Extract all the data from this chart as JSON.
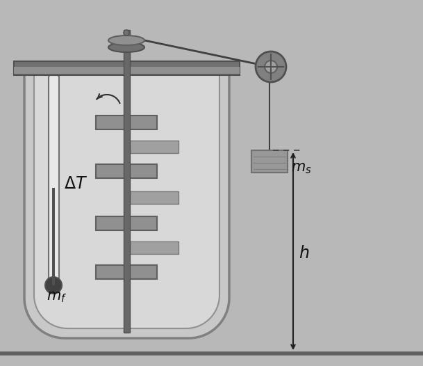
{
  "bg_color": "#b8b8b8",
  "vessel_outer_color": "#c8c8c8",
  "vessel_inner_color": "#d8d8d8",
  "vessel_edge": "#808080",
  "bar_color": "#707070",
  "shaft_color": "#686868",
  "shaft_edge": "#505050",
  "paddle_color": "#909090",
  "paddle_edge": "#606060",
  "fixed_blade_color": "#a0a0a0",
  "fixed_blade_edge": "#787878",
  "wheel_color": "#808080",
  "weight_color": "#989898",
  "weight_edge": "#707070",
  "therm_tube_color": "#e8e8e8",
  "therm_mercury": "#505050",
  "therm_bulb_color": "#404040",
  "string_color": "#404040",
  "arrow_color": "#202020",
  "text_color": "#101010",
  "floor_color": "#606060",
  "label_mf": "$m_f$",
  "label_ms": "$m_s$",
  "label_h": "$h$",
  "label_dT": "$\\Delta T$"
}
